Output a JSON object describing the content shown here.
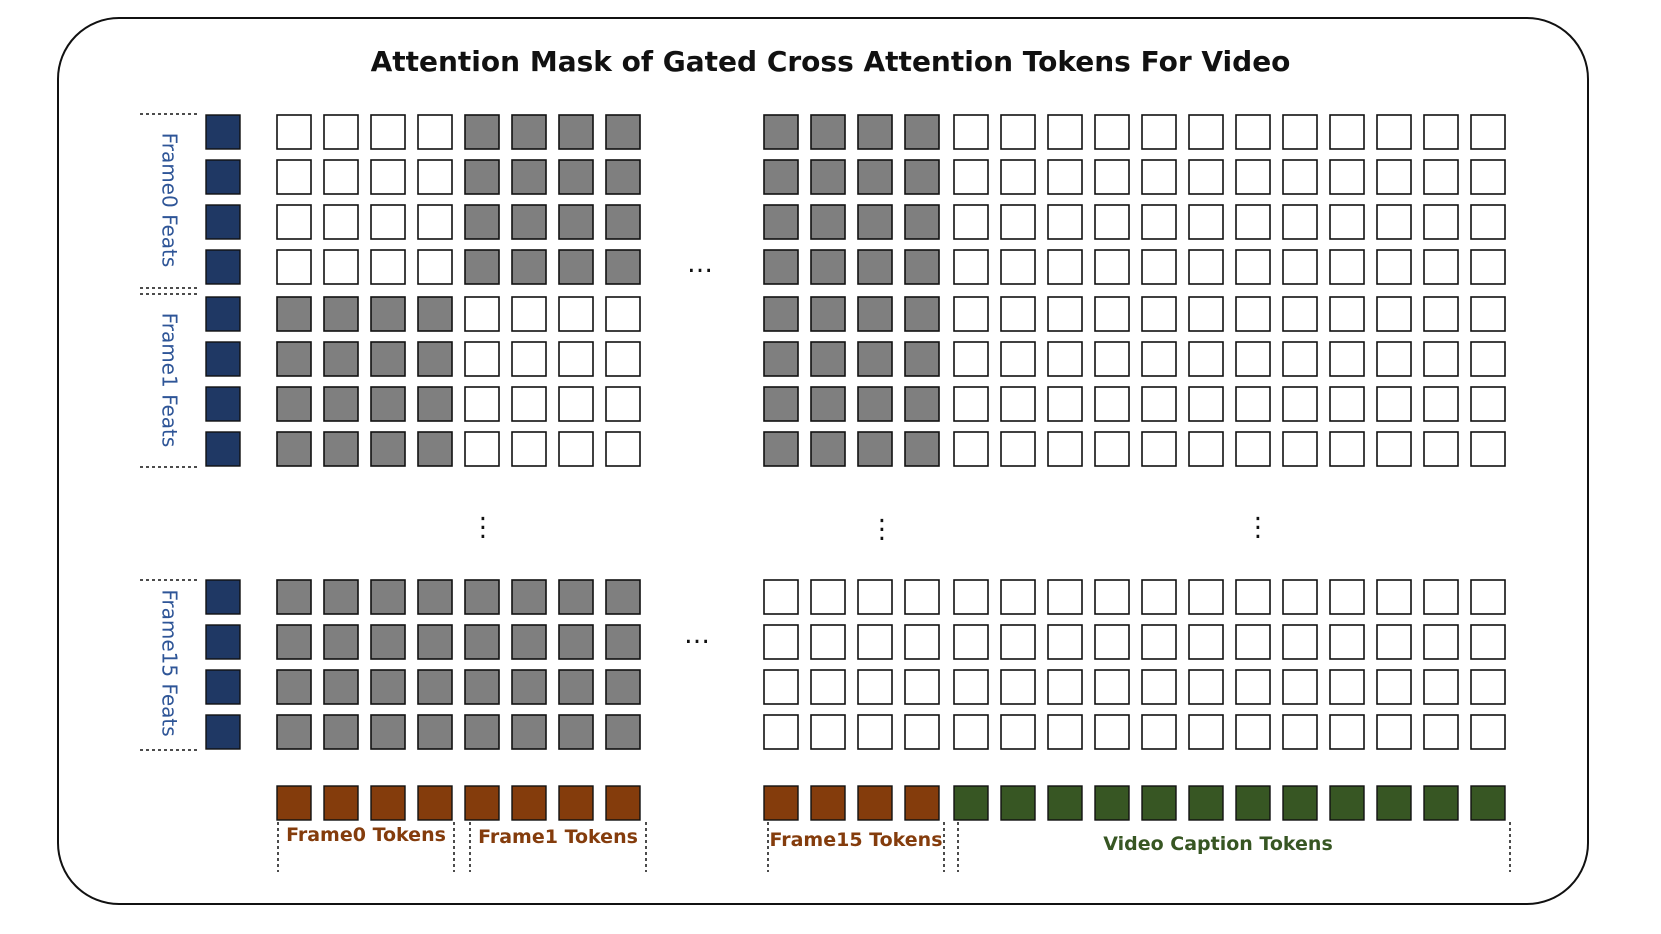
{
  "title": "Attention Mask of Gated Cross Attention Tokens For Video",
  "row_groups": [
    {
      "label": "Frame0 Feats",
      "rows": 4,
      "masked_blocks": [
        1,
        2
      ]
    },
    {
      "label": "Frame1 Feats",
      "rows": 4,
      "masked_blocks": [
        0,
        2
      ]
    },
    {
      "label": "Frame15 Feats",
      "rows": 4,
      "masked_blocks": [
        0,
        1
      ]
    }
  ],
  "column_groups": [
    {
      "label": "Frame0 Tokens",
      "count": 4,
      "kind": "frame"
    },
    {
      "label": "Frame1 Tokens",
      "count": 4,
      "kind": "frame"
    },
    {
      "label": "Frame15 Tokens",
      "count": 4,
      "kind": "frame"
    },
    {
      "label": "Video Caption Tokens",
      "count": 12,
      "kind": "caption"
    }
  ],
  "ellipsis": {
    "horizontal": "…",
    "vertical": "⋮"
  },
  "colors": {
    "feat": "#1f3864",
    "frame_token": "#843c0c",
    "caption_token": "#375623",
    "masked_cell": "#7f7f7f",
    "open_cell": "#ffffff",
    "feat_label": "#2e5597"
  }
}
